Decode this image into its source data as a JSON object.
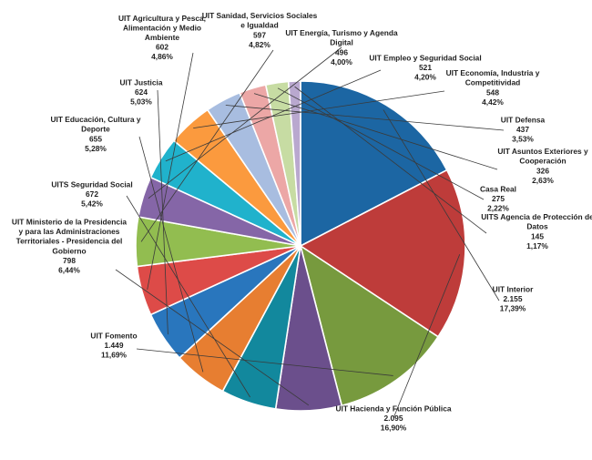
{
  "chart_data": {
    "type": "pie",
    "title": "",
    "start_angle_deg": 90,
    "direction": "clockwise",
    "slices": [
      {
        "name": "UIT Interior",
        "value_text": "2.155",
        "percent_text": "17,39%",
        "value": 2155,
        "color": "#1c66a3"
      },
      {
        "name": "UIT Hacienda y Función Pública",
        "value_text": "2.095",
        "percent_text": "16,90%",
        "value": 2095,
        "color": "#be3c3a"
      },
      {
        "name": "UIT Fomento",
        "value_text": "1.449",
        "percent_text": "11,69%",
        "value": 1449,
        "color": "#779a3e"
      },
      {
        "name": "UIT Ministerio de la Presidencia y para las Administraciones Territoriales - Presidencia del Gobierno",
        "value_text": "798",
        "percent_text": "6,44%",
        "value": 798,
        "color": "#6b4f8c"
      },
      {
        "name": "UITS Seguridad Social",
        "value_text": "672",
        "percent_text": "5,42%",
        "value": 672,
        "color": "#12889d"
      },
      {
        "name": "UIT Educación, Cultura y Deporte",
        "value_text": "655",
        "percent_text": "5,28%",
        "value": 655,
        "color": "#e77e31"
      },
      {
        "name": "UIT Justicia",
        "value_text": "624",
        "percent_text": "5,03%",
        "value": 624,
        "color": "#2976bd"
      },
      {
        "name": "UIT Agricultura y Pesca, Alimentación y Medio Ambiente",
        "value_text": "602",
        "percent_text": "4,86%",
        "value": 602,
        "color": "#dd4b48"
      },
      {
        "name": "UIT Sanidad, Servicios Sociales e Igualdad",
        "value_text": "597",
        "percent_text": "4,82%",
        "value": 597,
        "color": "#92bd50"
      },
      {
        "name": "UIT Energía, Turismo y Agenda Digital",
        "value_text": "496",
        "percent_text": "4,00%",
        "value": 496,
        "color": "#8566a7"
      },
      {
        "name": "UIT Empleo y Seguridad Social",
        "value_text": "521",
        "percent_text": "4,20%",
        "value": 521,
        "color": "#20b2cc"
      },
      {
        "name": "UIT Economía, Industria y Competitividad",
        "value_text": "548",
        "percent_text": "4,42%",
        "value": 548,
        "color": "#fb9a3e"
      },
      {
        "name": "UIT Defensa",
        "value_text": "437",
        "percent_text": "3,53%",
        "value": 437,
        "color": "#a8bde0"
      },
      {
        "name": "UIT Asuntos Exteriores y Cooperación",
        "value_text": "326",
        "percent_text": "2,63%",
        "value": 326,
        "color": "#eca7a6"
      },
      {
        "name": "Casa Real",
        "value_text": "275",
        "percent_text": "2,22%",
        "value": 275,
        "color": "#c7dca3"
      },
      {
        "name": "UITS Agencia de Protección de Datos",
        "value_text": "145",
        "percent_text": "1,17%",
        "value": 145,
        "color": "#b9a8cf"
      }
    ]
  }
}
